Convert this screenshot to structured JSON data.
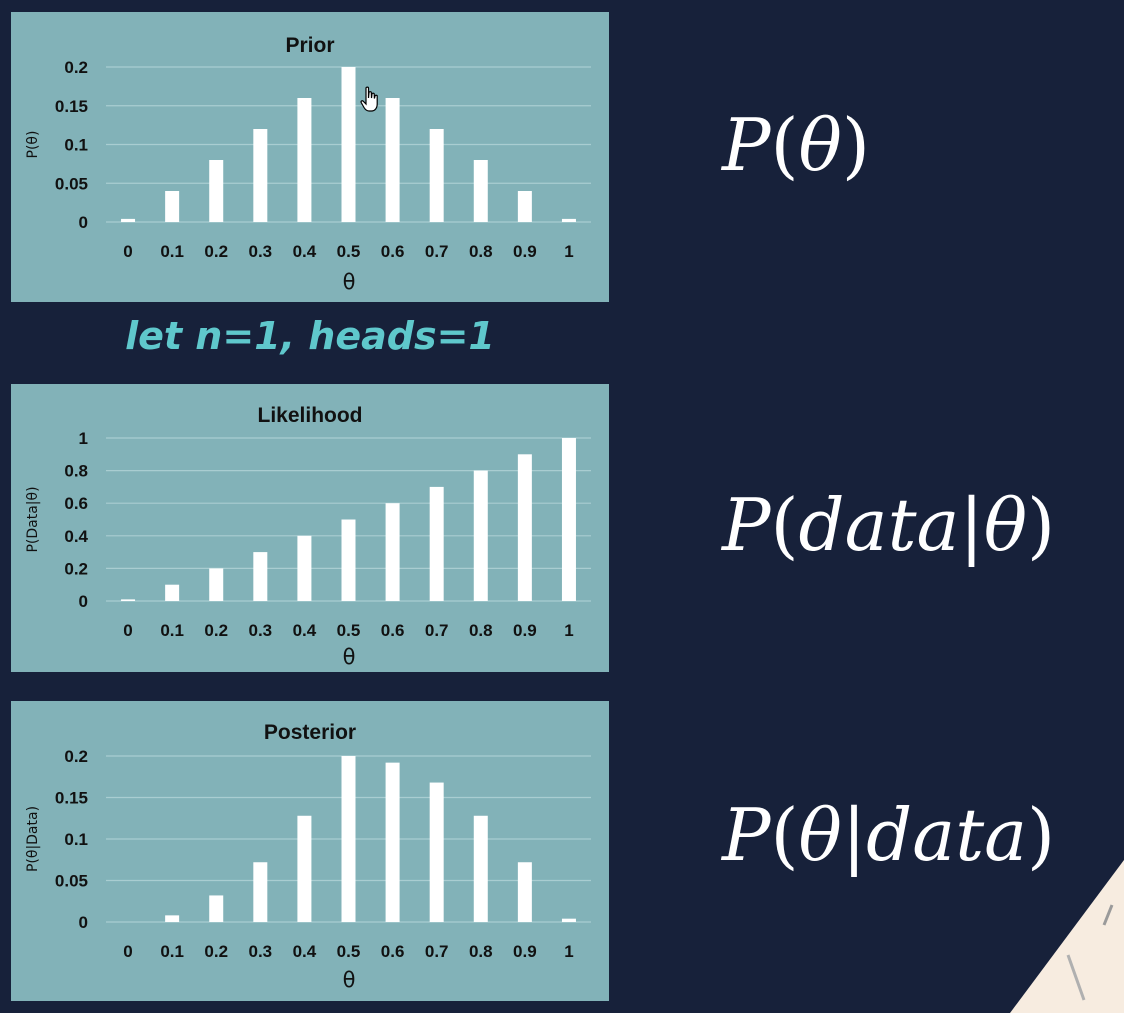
{
  "caption": {
    "text": "let n=1, heads=1",
    "color": "#5fc8cc"
  },
  "formulas": [
    {
      "parts": [
        "P",
        "(",
        "θ",
        ")"
      ]
    },
    {
      "parts": [
        "P",
        "(",
        "data",
        "|",
        "θ",
        ")"
      ]
    },
    {
      "parts": [
        "P",
        "(",
        "θ",
        "|",
        "data",
        ")"
      ]
    }
  ],
  "colors": {
    "background": "#17213a",
    "panel": "#82b2b8",
    "bar": "#ffffff",
    "grid": "#a9cdd1",
    "text": "#111111",
    "corner": "#f7ece0"
  },
  "chart_data": [
    {
      "type": "bar",
      "title": "Prior",
      "xlabel": "θ",
      "ylabel": "P(θ)",
      "categories": [
        "0",
        "0.1",
        "0.2",
        "0.3",
        "0.4",
        "0.5",
        "0.6",
        "0.7",
        "0.8",
        "0.9",
        "1"
      ],
      "values": [
        0.004,
        0.04,
        0.08,
        0.12,
        0.16,
        0.2,
        0.16,
        0.12,
        0.08,
        0.04,
        0.004
      ],
      "yticks": [
        "0",
        "0.05",
        "0.1",
        "0.15",
        "0.2"
      ],
      "ylim": [
        0,
        0.2
      ]
    },
    {
      "type": "bar",
      "title": "Likelihood",
      "xlabel": "θ",
      "ylabel": "P(Data|θ)",
      "categories": [
        "0",
        "0.1",
        "0.2",
        "0.3",
        "0.4",
        "0.5",
        "0.6",
        "0.7",
        "0.8",
        "0.9",
        "1"
      ],
      "values": [
        0.01,
        0.1,
        0.2,
        0.3,
        0.4,
        0.5,
        0.6,
        0.7,
        0.8,
        0.9,
        1.0
      ],
      "yticks": [
        "0",
        "0.2",
        "0.4",
        "0.6",
        "0.8",
        "1"
      ],
      "ylim": [
        0,
        1
      ]
    },
    {
      "type": "bar",
      "title": "Posterior",
      "xlabel": "θ",
      "ylabel": "P(θ|Data)",
      "categories": [
        "0",
        "0.1",
        "0.2",
        "0.3",
        "0.4",
        "0.5",
        "0.6",
        "0.7",
        "0.8",
        "0.9",
        "1"
      ],
      "values": [
        0,
        0.008,
        0.032,
        0.072,
        0.128,
        0.2,
        0.192,
        0.168,
        0.128,
        0.072,
        0.004
      ],
      "yticks": [
        "0",
        "0.05",
        "0.1",
        "0.15",
        "0.2"
      ],
      "ylim": [
        0,
        0.2
      ]
    }
  ]
}
